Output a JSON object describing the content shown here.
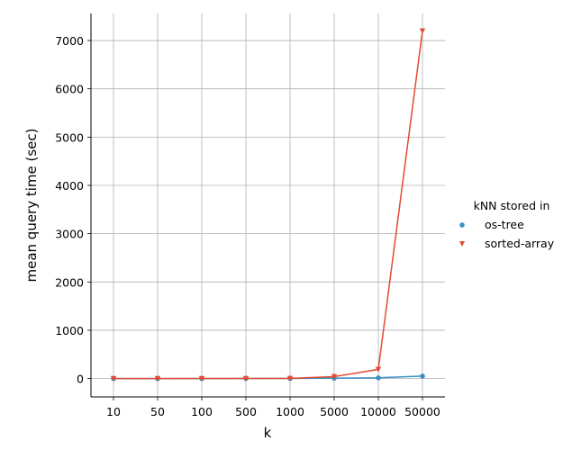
{
  "chart_data": {
    "type": "line",
    "title": "",
    "xlabel": "k",
    "ylabel": "mean query time (sec)",
    "categories": [
      "10",
      "50",
      "100",
      "500",
      "1000",
      "5000",
      "10000",
      "50000"
    ],
    "ylim": [
      -380,
      7560
    ],
    "yticks": [
      0,
      1000,
      2000,
      3000,
      4000,
      5000,
      6000,
      7000
    ],
    "grid": true,
    "legend": {
      "title": "kNN stored in",
      "position": "right"
    },
    "series": [
      {
        "name": "os-tree",
        "marker": "circle",
        "color": "#3a8fc7",
        "values": [
          0.3,
          0.4,
          0.5,
          1,
          2,
          8,
          15,
          50
        ]
      },
      {
        "name": "sorted-array",
        "marker": "triangle-down",
        "color": "#e34a33",
        "values": [
          0.2,
          0.5,
          1,
          2,
          4,
          40,
          190,
          7200
        ]
      }
    ]
  }
}
